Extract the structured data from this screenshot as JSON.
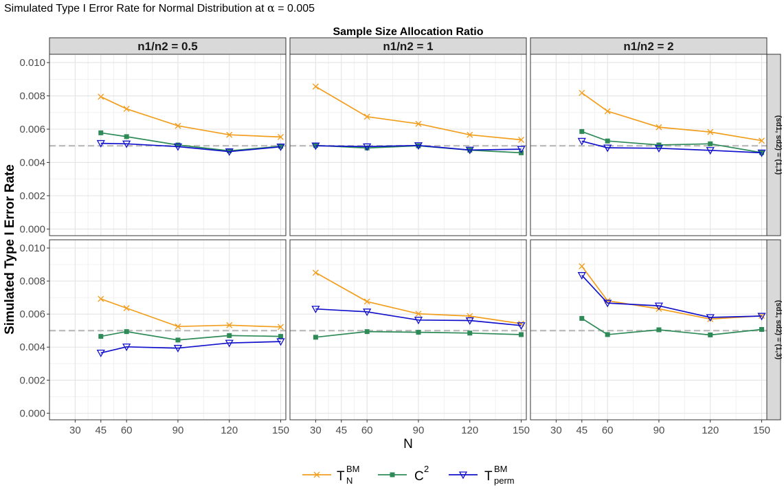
{
  "chart_data": {
    "type": "line",
    "title_prefix": "Simulated Type I Error Rate for Normal Distribution at ",
    "title_alpha_symbol": "α",
    "title_suffix": " = 0.005",
    "column_strip_title": "Sample Size Allocation Ratio",
    "xlabel": "N",
    "ylabel": "Simulated Type I Error Rate",
    "x_ticks": [
      30,
      45,
      60,
      90,
      120,
      150
    ],
    "xlim": [
      15,
      153
    ],
    "ylim": [
      -0.0004,
      0.0105
    ],
    "y_ticks": [
      0.0,
      0.002,
      0.004,
      0.006,
      0.008,
      0.01
    ],
    "y_tick_labels": [
      "0.000",
      "0.002",
      "0.004",
      "0.006",
      "0.008",
      "0.010"
    ],
    "reference_line": 0.005,
    "columns": [
      "n1/n2 =  0.5",
      "n1/n2 =  1",
      "n1/n2 =  2"
    ],
    "rows": [
      "(sd1, sd2) = (1,1)",
      "(sd1, sd2) = (1,3)"
    ],
    "series_styles": [
      {
        "name": "T_N^BM",
        "label_main": "T",
        "label_sup": "BM",
        "label_sub": "N",
        "color": "#f29e1d",
        "marker": "x"
      },
      {
        "name": "C^2",
        "label_main": "C",
        "label_sup": "2",
        "label_sub": "",
        "color": "#2e8b57",
        "marker": "square"
      },
      {
        "name": "T_perm^BM",
        "label_main": "T",
        "label_sup": "BM",
        "label_sub": "perm",
        "color": "#1010cc",
        "marker": "triangle-down"
      }
    ],
    "panels": [
      {
        "row": 0,
        "col": 0,
        "x": [
          45,
          60,
          90,
          120,
          150
        ],
        "series": [
          {
            "name": "T_N^BM",
            "values": [
              0.00795,
              0.00722,
              0.0062,
              0.00566,
              0.00553
            ]
          },
          {
            "name": "C^2",
            "values": [
              0.00578,
              0.00555,
              0.00505,
              0.0047,
              0.00497
            ]
          },
          {
            "name": "T_perm^BM",
            "values": [
              0.00515,
              0.00512,
              0.00495,
              0.00465,
              0.00494
            ]
          }
        ]
      },
      {
        "row": 0,
        "col": 1,
        "x": [
          30,
          60,
          90,
          120,
          150
        ],
        "series": [
          {
            "name": "T_N^BM",
            "values": [
              0.00856,
              0.00675,
              0.00632,
              0.00566,
              0.00536
            ]
          },
          {
            "name": "C^2",
            "values": [
              0.00502,
              0.00487,
              0.005,
              0.00474,
              0.00458
            ]
          },
          {
            "name": "T_perm^BM",
            "values": [
              0.005,
              0.00495,
              0.00502,
              0.00475,
              0.0048
            ]
          }
        ]
      },
      {
        "row": 0,
        "col": 2,
        "x": [
          45,
          60,
          90,
          120,
          150
        ],
        "series": [
          {
            "name": "T_N^BM",
            "values": [
              0.00818,
              0.00708,
              0.00612,
              0.00583,
              0.00531
            ]
          },
          {
            "name": "C^2",
            "values": [
              0.00586,
              0.00529,
              0.00505,
              0.00512,
              0.00459
            ]
          },
          {
            "name": "T_perm^BM",
            "values": [
              0.00528,
              0.00488,
              0.00485,
              0.00473,
              0.00458
            ]
          }
        ]
      },
      {
        "row": 1,
        "col": 0,
        "x": [
          45,
          60,
          90,
          120,
          150
        ],
        "series": [
          {
            "name": "T_N^BM",
            "values": [
              0.00692,
              0.00636,
              0.00525,
              0.00533,
              0.00522
            ]
          },
          {
            "name": "C^2",
            "values": [
              0.00465,
              0.00494,
              0.00443,
              0.0047,
              0.00465
            ]
          },
          {
            "name": "T_perm^BM",
            "values": [
              0.00365,
              0.00402,
              0.00394,
              0.00425,
              0.00434
            ]
          }
        ]
      },
      {
        "row": 1,
        "col": 1,
        "x": [
          30,
          60,
          90,
          120,
          150
        ],
        "series": [
          {
            "name": "T_N^BM",
            "values": [
              0.00851,
              0.00676,
              0.00602,
              0.00588,
              0.00542
            ]
          },
          {
            "name": "C^2",
            "values": [
              0.0046,
              0.00494,
              0.0049,
              0.00485,
              0.00476
            ]
          },
          {
            "name": "T_perm^BM",
            "values": [
              0.00631,
              0.00614,
              0.00564,
              0.00561,
              0.00531
            ]
          }
        ]
      },
      {
        "row": 1,
        "col": 2,
        "x": [
          45,
          60,
          90,
          120,
          150
        ],
        "series": [
          {
            "name": "T_N^BM",
            "values": [
              0.0089,
              0.00681,
              0.00632,
              0.0057,
              0.0059
            ]
          },
          {
            "name": "C^2",
            "values": [
              0.00574,
              0.00476,
              0.00505,
              0.00474,
              0.00507
            ]
          },
          {
            "name": "T_perm^BM",
            "values": [
              0.00835,
              0.00667,
              0.0065,
              0.0058,
              0.00588
            ]
          }
        ]
      }
    ]
  }
}
